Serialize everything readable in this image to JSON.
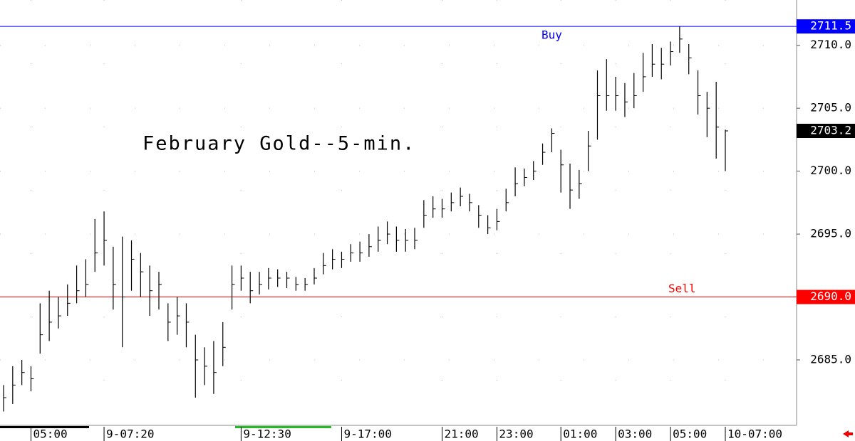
{
  "chart_data": {
    "type": "ohlc",
    "title": "February Gold--5-min.",
    "high": [
      2683,
      2684.5,
      2685,
      2684.5,
      2689.5,
      2690.5,
      2690,
      2691,
      2692.5,
      2693,
      2696.2,
      2696.8,
      2694,
      2694.8,
      2694.5,
      2693.5,
      2692.5,
      2692,
      2689.5,
      2690,
      2689.5,
      2687,
      2686,
      2686.5,
      2688,
      2692.5,
      2692.5,
      2692,
      2692,
      2692.3,
      2692.2,
      2692,
      2691.6,
      2691.5,
      2692.3,
      2693.5,
      2693.8,
      2693.6,
      2694.2,
      2694.4,
      2695,
      2695.6,
      2696,
      2695.6,
      2695.4,
      2695.5,
      2697.7,
      2698,
      2697.8,
      2698.3,
      2698.7,
      2698.2,
      2697.3,
      2696.5,
      2697,
      2698.6,
      2700.3,
      2700.2,
      2700.8,
      2702.2,
      2703.4,
      2701.7,
      2700.6,
      2700.1,
      2703.2,
      2708,
      2708.9,
      2707.5,
      2707,
      2707.8,
      2709.4,
      2710.1,
      2709.8,
      2710.3,
      2711.5,
      2710.1,
      2708,
      2706.3,
      2707.1,
      2703.3
    ],
    "low": [
      2680.9,
      2681.5,
      2683,
      2682.5,
      2685.5,
      2686.5,
      2687.5,
      2688.5,
      2689.5,
      2690,
      2692,
      2692.5,
      2689,
      2686,
      2690.5,
      2690,
      2688.5,
      2689,
      2686.5,
      2687,
      2686,
      2682,
      2683,
      2682.3,
      2684.5,
      2689,
      2690.5,
      2689.5,
      2690.2,
      2690.6,
      2690.8,
      2690.7,
      2690.5,
      2690.5,
      2691,
      2691.8,
      2692.2,
      2692.3,
      2692.8,
      2692.8,
      2693.2,
      2693.6,
      2694.2,
      2693.6,
      2693.6,
      2693.8,
      2695.5,
      2696.3,
      2696.3,
      2696.8,
      2697.2,
      2696.8,
      2695.5,
      2695,
      2695.3,
      2696.8,
      2698,
      2698.8,
      2699.3,
      2700.5,
      2701.5,
      2698.3,
      2697,
      2697.8,
      2700,
      2702.5,
      2704.8,
      2704.8,
      2704.3,
      2705,
      2706.3,
      2707.5,
      2707.3,
      2708.4,
      2709.4,
      2707.7,
      2704.5,
      2702.7,
      2701,
      2700
    ],
    "close": [
      2682,
      2683,
      2684,
      2683.5,
      2687,
      2688,
      2688.5,
      2689.5,
      2690.5,
      2691,
      2693.5,
      2694.5,
      2691,
      2690,
      2693,
      2692,
      2690.5,
      2691,
      2688,
      2688.5,
      2688,
      2685,
      2684.5,
      2684,
      2686,
      2691,
      2691.5,
      2690.5,
      2691,
      2691.5,
      2691.5,
      2691.5,
      2691,
      2691,
      2691.5,
      2692.5,
      2693,
      2693,
      2693.5,
      2693.5,
      2694,
      2694.5,
      2695,
      2694.5,
      2694.5,
      2694.5,
      2696.5,
      2697,
      2697,
      2697.5,
      2698,
      2697.5,
      2696.5,
      2695.5,
      2696,
      2697.5,
      2699,
      2699.5,
      2700,
      2701.5,
      2703,
      2700.5,
      2698.5,
      2699,
      2702,
      2706,
      2706,
      2706,
      2705.5,
      2706,
      2707.5,
      2708.5,
      2708.5,
      2709.5,
      2710.5,
      2709,
      2706,
      2705,
      2703.5,
      2703.2
    ],
    "ylim": [
      2679.8,
      2713.6
    ],
    "yticks": [
      {
        "value": 2685,
        "label": "2685.0"
      },
      {
        "value": 2695,
        "label": "2695.0"
      },
      {
        "value": 2700,
        "label": "2700.0"
      },
      {
        "value": 2705,
        "label": "2705.0"
      },
      {
        "value": 2710,
        "label": "2710.0"
      }
    ],
    "xticks": [
      {
        "value": 3,
        "label": "05:00"
      },
      {
        "value": 11,
        "label": "9-07:20"
      },
      {
        "value": 26,
        "label": "9-12:30"
      },
      {
        "value": 37,
        "label": "9-17:00"
      },
      {
        "value": 48,
        "label": "21:00"
      },
      {
        "value": 54,
        "label": "23:00"
      },
      {
        "value": 61,
        "label": "01:00"
      },
      {
        "value": 67,
        "label": "03:00"
      },
      {
        "value": 73,
        "label": "05:00"
      },
      {
        "value": 79,
        "label": "10-07:00"
      }
    ],
    "levels": [
      {
        "name": "Buy",
        "value": 2711.5,
        "label": "2711.5",
        "color": "#0000ff"
      },
      {
        "name": "Sell",
        "value": 2690.0,
        "label": "2690.0",
        "color": "#ff0000"
      }
    ],
    "last": {
      "value": 2703.2,
      "label": "2703.2"
    }
  }
}
